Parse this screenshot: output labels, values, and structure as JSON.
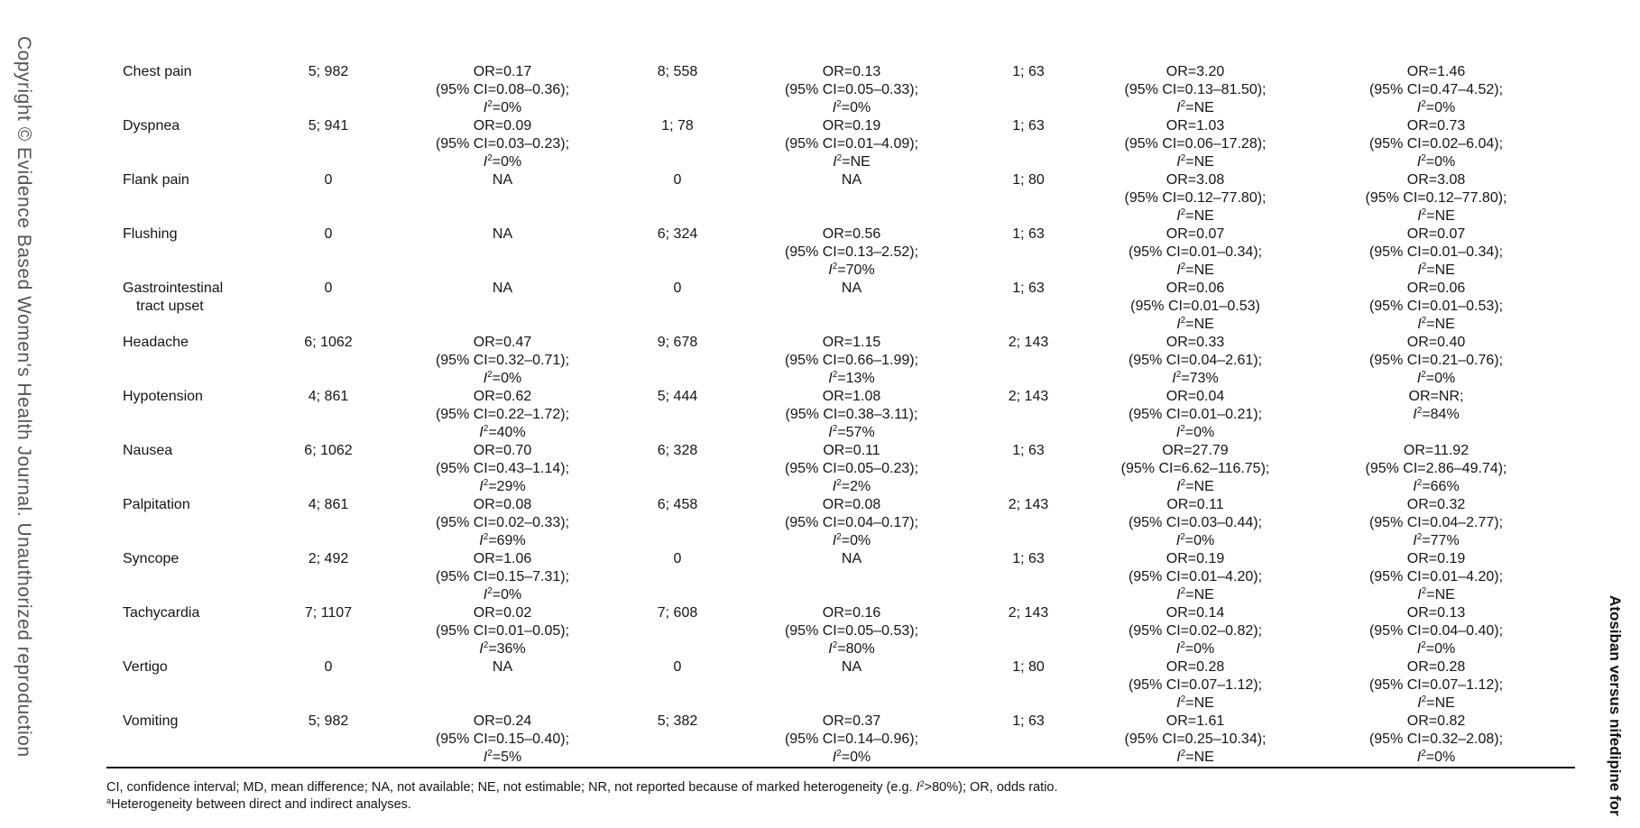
{
  "side_left_text": "Copyright © Evidence Based Women's Health Journal. Unauthorized reproduction",
  "side_right_text": "Atosiban versus nifedipine for",
  "rows": [
    {
      "label": [
        "Chest pain"
      ],
      "cells": [
        "5; 982",
        {
          "or": "OR=0.17",
          "ci": "(95% CI=0.08–0.36);",
          "i2": "=0%"
        },
        "8; 558",
        {
          "or": "OR=0.13",
          "ci": "(95% CI=0.05–0.33);",
          "i2": "=0%"
        },
        "1; 63",
        {
          "or": "OR=3.20",
          "ci": "(95% CI=0.13–81.50);",
          "i2": "=NE"
        },
        {
          "or": "OR=1.46",
          "ci": "(95% CI=0.47–4.52);",
          "i2": "=0%"
        }
      ]
    },
    {
      "label": [
        "Dyspnea"
      ],
      "cells": [
        "5; 941",
        {
          "or": "OR=0.09",
          "ci": "(95% CI=0.03–0.23);",
          "i2": "=0%"
        },
        "1; 78",
        {
          "or": "OR=0.19",
          "ci": "(95% CI=0.01–4.09);",
          "i2": "=NE"
        },
        "1; 63",
        {
          "or": "OR=1.03",
          "ci": "(95% CI=0.06–17.28);",
          "i2": "=NE"
        },
        {
          "or": "OR=0.73",
          "ci": "(95% CI=0.02–6.04);",
          "i2": "=0%"
        }
      ]
    },
    {
      "label": [
        "Flank pain"
      ],
      "cells": [
        "0",
        {
          "or": "NA"
        },
        "0",
        {
          "or": "NA"
        },
        "1; 80",
        {
          "or": "OR=3.08",
          "ci": "(95% CI=0.12–77.80);",
          "i2": "=NE"
        },
        {
          "or": "OR=3.08",
          "ci": "(95% CI=0.12–77.80);",
          "i2": "=NE"
        }
      ]
    },
    {
      "label": [
        "Flushing"
      ],
      "cells": [
        "0",
        {
          "or": "NA"
        },
        "6; 324",
        {
          "or": "OR=0.56",
          "ci": "(95% CI=0.13–2.52);",
          "i2": "=70%"
        },
        "1; 63",
        {
          "or": "OR=0.07",
          "ci": "(95% CI=0.01–0.34);",
          "i2": "=NE"
        },
        {
          "or": "OR=0.07",
          "ci": "(95% CI=0.01–0.34);",
          "i2": "=NE"
        }
      ]
    },
    {
      "label": [
        "Gastrointestinal",
        "tract upset"
      ],
      "cells": [
        "0",
        {
          "or": "NA"
        },
        "0",
        {
          "or": "NA"
        },
        "1; 63",
        {
          "or": "OR=0.06",
          "ci": "(95% CI=0.01–0.53)",
          "i2": "=NE"
        },
        {
          "or": "OR=0.06",
          "ci": "(95% CI=0.01–0.53);",
          "i2": "=NE"
        }
      ]
    },
    {
      "label": [
        "Headache"
      ],
      "cells": [
        "6; 1062",
        {
          "or": "OR=0.47",
          "ci": "(95% CI=0.32–0.71);",
          "i2": "=0%"
        },
        "9; 678",
        {
          "or": "OR=1.15",
          "ci": "(95% CI=0.66–1.99);",
          "i2": "=13%"
        },
        "2; 143",
        {
          "or": "OR=0.33",
          "ci": "(95% CI=0.04–2.61);",
          "i2": "=73%"
        },
        {
          "or": "OR=0.40",
          "ci": "(95% CI=0.21–0.76);",
          "i2": "=0%"
        }
      ]
    },
    {
      "label": [
        "Hypotension"
      ],
      "cells": [
        "4; 861",
        {
          "or": "OR=0.62",
          "ci": "(95% CI=0.22–1.72);",
          "i2": "=40%"
        },
        "5; 444",
        {
          "or": "OR=1.08",
          "ci": "(95% CI=0.38–3.11);",
          "i2": "=57%"
        },
        "2; 143",
        {
          "or": "OR=0.04",
          "ci": "(95% CI=0.01–0.21);",
          "i2": "=0%"
        },
        {
          "or": "OR=NR;",
          "i2": "=84%"
        }
      ]
    },
    {
      "label": [
        "Nausea"
      ],
      "cells": [
        "6; 1062",
        {
          "or": "OR=0.70",
          "ci": "(95% CI=0.43–1.14);",
          "i2": "=29%"
        },
        "6; 328",
        {
          "or": "OR=0.11",
          "ci": "(95% CI=0.05–0.23);",
          "i2": "=2%"
        },
        "1; 63",
        {
          "or": "OR=27.79",
          "ci": "(95% CI=6.62–116.75);",
          "i2": "=NE"
        },
        {
          "or": "OR=11.92",
          "ci": "(95% CI=2.86–49.74);",
          "i2": "=66%"
        }
      ]
    },
    {
      "label": [
        "Palpitation"
      ],
      "cells": [
        "4; 861",
        {
          "or": "OR=0.08",
          "ci": "(95% CI=0.02–0.33);",
          "i2": "=69%"
        },
        "6; 458",
        {
          "or": "OR=0.08",
          "ci": "(95% CI=0.04–0.17);",
          "i2": "=0%"
        },
        "2; 143",
        {
          "or": "OR=0.11",
          "ci": "(95% CI=0.03–0.44);",
          "i2": "=0%"
        },
        {
          "or": "OR=0.32",
          "ci": "(95% CI=0.04–2.77);",
          "i2": "=77%"
        }
      ]
    },
    {
      "label": [
        "Syncope"
      ],
      "cells": [
        "2; 492",
        {
          "or": "OR=1.06",
          "ci": "(95% CI=0.15–7.31);",
          "i2": "=0%"
        },
        "0",
        {
          "or": "NA"
        },
        "1; 63",
        {
          "or": "OR=0.19",
          "ci": "(95% CI=0.01–4.20);",
          "i2": "=NE"
        },
        {
          "or": "OR=0.19",
          "ci": "(95% CI=0.01–4.20);",
          "i2": "=NE"
        }
      ]
    },
    {
      "label": [
        "Tachycardia"
      ],
      "cells": [
        "7; 1107",
        {
          "or": "OR=0.02",
          "ci": "(95% CI=0.01–0.05);",
          "i2": "=36%"
        },
        "7; 608",
        {
          "or": "OR=0.16",
          "ci": "(95% CI=0.05–0.53);",
          "i2": "=80%"
        },
        "2; 143",
        {
          "or": "OR=0.14",
          "ci": "(95% CI=0.02–0.82);",
          "i2": "=0%"
        },
        {
          "or": "OR=0.13",
          "ci": "(95% CI=0.04–0.40);",
          "i2": "=0%"
        }
      ]
    },
    {
      "label": [
        "Vertigo"
      ],
      "cells": [
        "0",
        {
          "or": "NA"
        },
        "0",
        {
          "or": "NA"
        },
        "1; 80",
        {
          "or": "OR=0.28",
          "ci": "(95% CI=0.07–1.12);",
          "i2": "=NE"
        },
        {
          "or": "OR=0.28",
          "ci": "(95% CI=0.07–1.12);",
          "i2": "=NE"
        }
      ]
    },
    {
      "label": [
        "Vomiting"
      ],
      "cells": [
        "5; 982",
        {
          "or": "OR=0.24",
          "ci": "(95% CI=0.15–0.40);",
          "i2": "=5%"
        },
        "5; 382",
        {
          "or": "OR=0.37",
          "ci": "(95% CI=0.14–0.96);",
          "i2": "=0%"
        },
        "1; 63",
        {
          "or": "OR=1.61",
          "ci": "(95% CI=0.25–10.34);",
          "i2": "=NE"
        },
        {
          "or": "OR=0.82",
          "ci": "(95% CI=0.32–2.08);",
          "i2": "=0%"
        }
      ]
    }
  ],
  "footnote": {
    "abbrev_before": "CI, confidence interval; MD, mean difference; NA, not available; NE, not estimable; NR, not reported because of marked heterogeneity (e.g. ",
    "abbrev_after": ">80%); OR, odds ratio.",
    "a_marker": "a",
    "a_text": "Heterogeneity between direct and indirect analyses."
  }
}
